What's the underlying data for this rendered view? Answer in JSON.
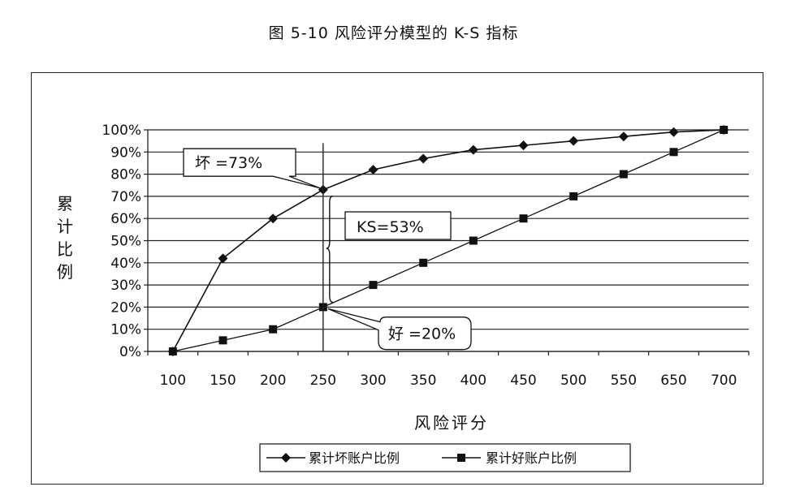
{
  "chart_data": {
    "type": "line",
    "title": "图 5-10 风险评分模型的 K-S 指标",
    "xlabel": "风险评分",
    "ylabel": "累计比例",
    "categories": [
      "100",
      "150",
      "200",
      "250",
      "300",
      "350",
      "400",
      "450",
      "500",
      "550",
      "650",
      "700"
    ],
    "y_tick_labels": [
      "0%",
      "10%",
      "20%",
      "30%",
      "40%",
      "50%",
      "60%",
      "70%",
      "80%",
      "90%",
      "100%"
    ],
    "ylim": [
      0,
      100
    ],
    "grid": "horizontal",
    "legend_position": "bottom",
    "series": [
      {
        "name": "累计坏账户比例",
        "marker": "diamond",
        "values": [
          0,
          42,
          60,
          73,
          82,
          87,
          91,
          93,
          95,
          97,
          99,
          100
        ]
      },
      {
        "name": "累计好账户比例",
        "marker": "square",
        "values": [
          0,
          5,
          10,
          20,
          30,
          40,
          50,
          60,
          70,
          80,
          90,
          100
        ]
      }
    ],
    "annotations": [
      {
        "id": "bad",
        "text": "坏 =73%",
        "category": "250",
        "value": 73
      },
      {
        "id": "ks",
        "text": "KS=53%",
        "category": "250",
        "value": 46.5
      },
      {
        "id": "good",
        "text": "好 =20%",
        "category": "250",
        "value": 20
      }
    ]
  }
}
